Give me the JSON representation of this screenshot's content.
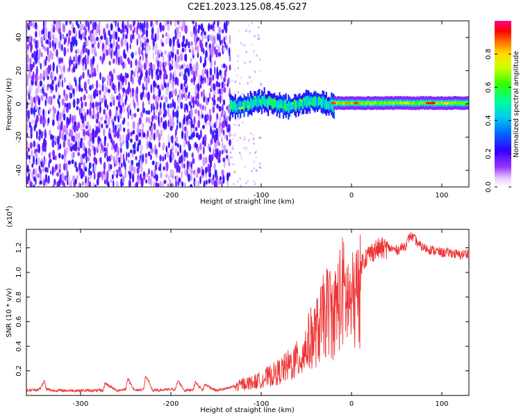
{
  "page": {
    "title": "C2E1.2023.125.08.45.G27"
  },
  "chart_data": [
    {
      "type": "heatmap",
      "title": "C2E1.2023.125.08.45.G27",
      "xlabel": "Height of straight line (km)",
      "ylabel": "Frequency (Hz)",
      "xlim": [
        -360,
        130
      ],
      "ylim": [
        -50,
        50
      ],
      "xticks": [
        -300,
        -200,
        -100,
        0,
        100
      ],
      "yticks": [
        -40,
        -20,
        0,
        20,
        40
      ],
      "colorbar": {
        "label": "Normalized spectral amplitude",
        "range": [
          0,
          1
        ],
        "ticks": [
          "0.0",
          "0.2",
          "0.4",
          "0.6",
          "0.8"
        ],
        "tick_values": [
          0.0,
          0.2,
          0.4,
          0.6,
          0.8
        ],
        "colormap": "rainbow (white-violet-blue-cyan-green-yellow-red-magenta)"
      },
      "regions": [
        {
          "x": [
            -360,
            -135
          ],
          "freq_center": 0,
          "freq_halfwidth": 50,
          "amplitude": 0.15,
          "note": "noise"
        },
        {
          "x": [
            -135,
            -20
          ],
          "freq_center": 0,
          "freq_halfwidth": 6,
          "amplitude": 0.45
        },
        {
          "x": [
            -20,
            130
          ],
          "freq_center": 0.5,
          "freq_halfwidth": 2,
          "amplitude": 0.7
        }
      ],
      "grid": false
    },
    {
      "type": "line",
      "xlabel": "Height of straight line (km)",
      "ylabel": "SNR (10 * v/v)",
      "y_multiplier": "(x10^4)",
      "y_multiplier_base": "(x10",
      "y_multiplier_exp": "4",
      "y_multiplier_close": ")",
      "xlim": [
        -360,
        130
      ],
      "ylim": [
        0,
        1.35
      ],
      "xticks": [
        -300,
        -200,
        -100,
        0,
        100
      ],
      "yticks": [
        0.2,
        0.4,
        0.6,
        0.8,
        1.0,
        1.2
      ],
      "ytick_labels": [
        "0.2",
        "0.4",
        "0.6",
        "0.8",
        "1.0",
        "1.2"
      ],
      "color": "#ee3333",
      "series": [
        {
          "x": [
            -360,
            -345,
            -340,
            -338,
            -330,
            -300,
            -275,
            -273,
            -260,
            -250,
            -248,
            -240,
            -230,
            -228,
            -220,
            -195,
            -192,
            -185,
            -175,
            -173,
            -165,
            -162,
            -150,
            -135,
            -120,
            -110,
            -100,
            -90,
            -80,
            -70,
            -60,
            -55,
            -50,
            -45,
            -40,
            -35,
            -30,
            -25,
            -20,
            -15,
            -10,
            -5,
            0,
            5,
            10,
            15,
            20,
            25,
            30,
            40,
            50,
            60,
            65,
            70,
            75,
            80,
            90,
            100,
            110,
            120,
            130
          ],
          "y": [
            0.04,
            0.05,
            0.12,
            0.05,
            0.04,
            0.04,
            0.04,
            0.1,
            0.04,
            0.05,
            0.14,
            0.04,
            0.05,
            0.16,
            0.04,
            0.05,
            0.12,
            0.04,
            0.05,
            0.11,
            0.04,
            0.09,
            0.04,
            0.06,
            0.12,
            0.13,
            0.16,
            0.2,
            0.24,
            0.3,
            0.36,
            0.4,
            0.5,
            0.58,
            0.62,
            0.7,
            0.82,
            0.88,
            0.8,
            0.95,
            1.05,
            0.98,
            0.92,
            1.0,
            1.06,
            1.12,
            1.15,
            1.18,
            1.19,
            1.2,
            1.18,
            1.22,
            1.3,
            1.27,
            1.22,
            1.2,
            1.18,
            1.16,
            1.16,
            1.14,
            1.16
          ]
        }
      ],
      "grid": false
    }
  ]
}
